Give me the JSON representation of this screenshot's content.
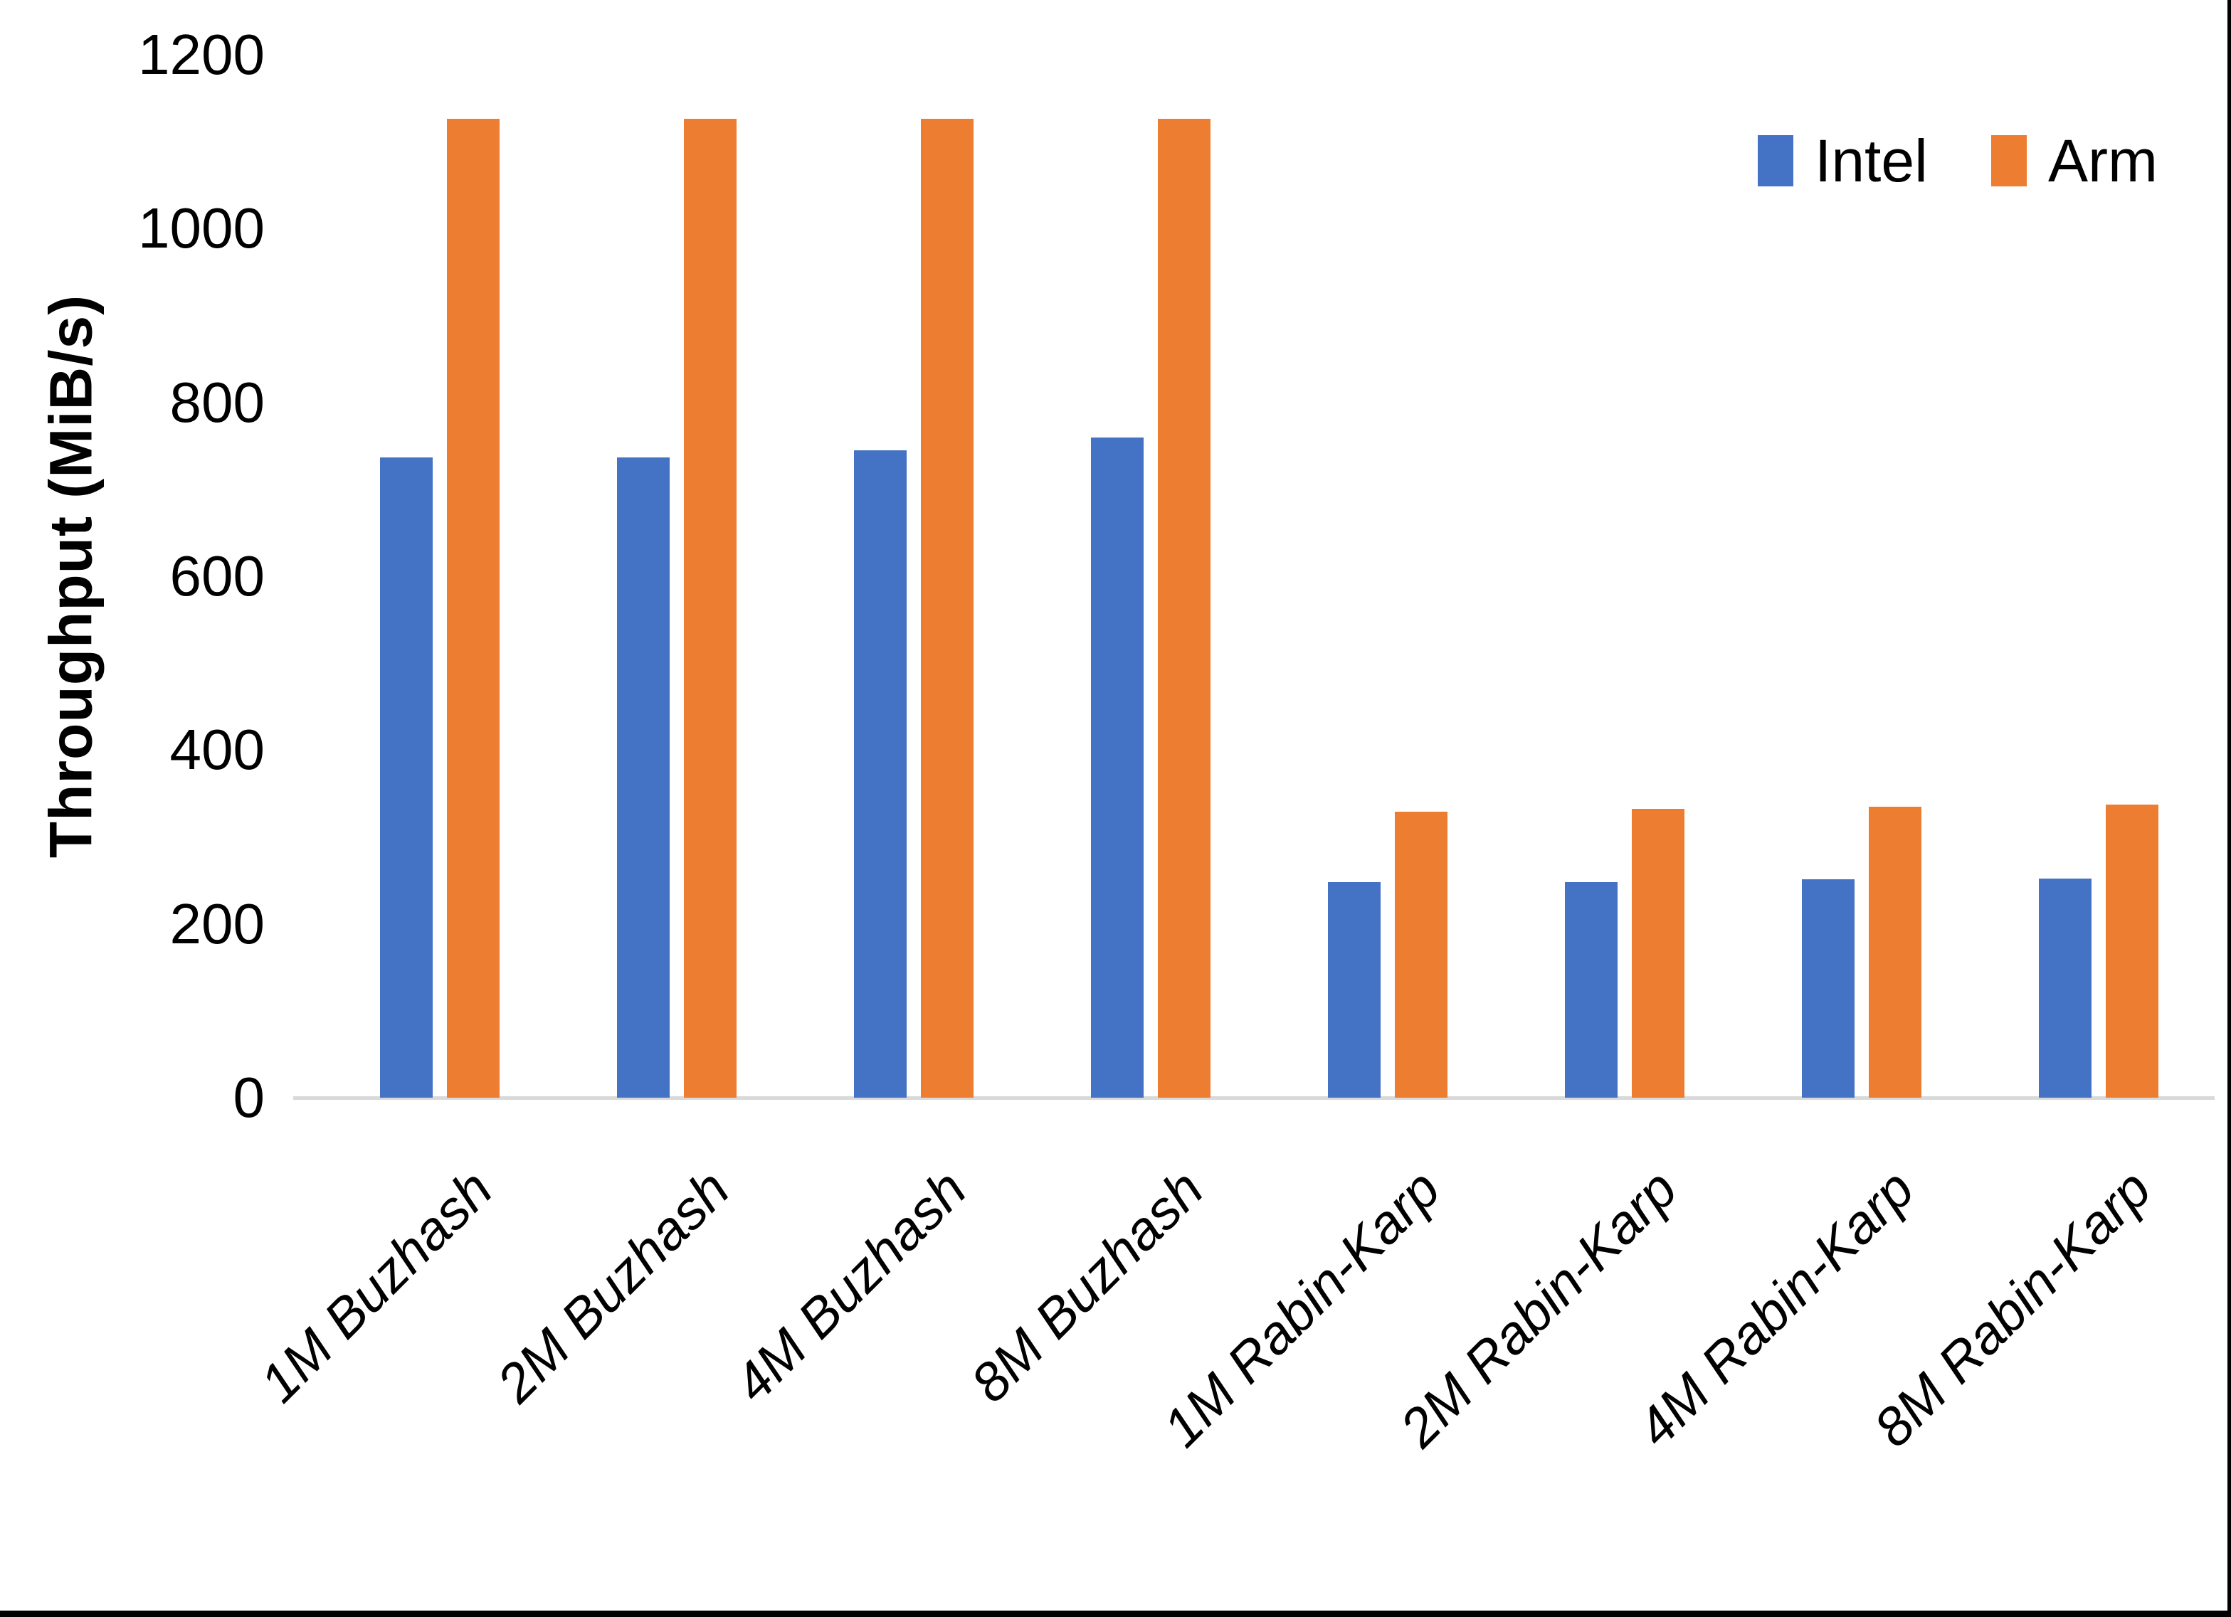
{
  "chart_data": {
    "type": "bar",
    "title": "",
    "xlabel": "",
    "ylabel": "Throughput (MiB/s)",
    "ylim": [
      0,
      1200
    ],
    "ytick_interval": 200,
    "yticks": [
      0,
      200,
      400,
      600,
      800,
      1000,
      1200
    ],
    "grid": false,
    "legend_position": "top-right",
    "categories": [
      "1M Buzhash",
      "2M Buzhash",
      "4M Buzhash",
      "8M Buzhash",
      "1M Rabin-Karp",
      "2M Rabin-Karp",
      "4M Rabin-Karp",
      "8M Rabin-Karp"
    ],
    "series": [
      {
        "name": "Intel",
        "color": "#4472C4",
        "values": [
          737,
          737,
          745,
          760,
          248,
          248,
          251,
          252
        ]
      },
      {
        "name": "Arm",
        "color": "#ED7D31",
        "values": [
          1126,
          1126,
          1126,
          1126,
          329,
          332,
          335,
          337
        ]
      }
    ]
  },
  "colors": {
    "background": "#FFFFFF",
    "intel_blue": "#4472C4",
    "arm_orange": "#ED7D31",
    "axis_line": "#D9D9D9",
    "text": "#000000",
    "edge_border": "#000000"
  }
}
